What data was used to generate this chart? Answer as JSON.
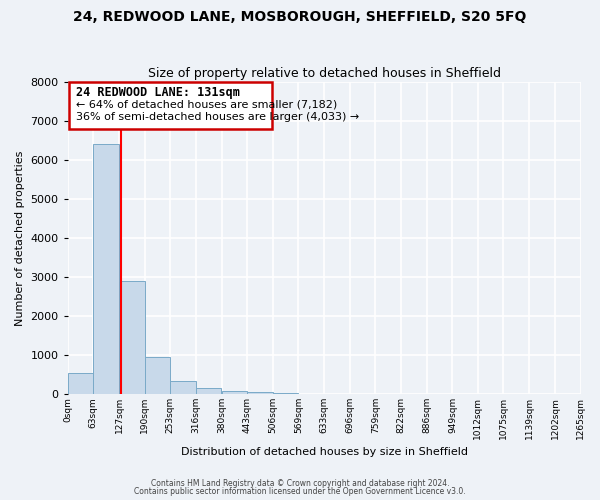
{
  "title1": "24, REDWOOD LANE, MOSBOROUGH, SHEFFIELD, S20 5FQ",
  "title2": "Size of property relative to detached houses in Sheffield",
  "xlabel": "Distribution of detached houses by size in Sheffield",
  "ylabel": "Number of detached properties",
  "bin_edges": [
    0,
    63,
    127,
    190,
    253,
    316,
    380,
    443,
    506,
    569,
    633,
    696,
    759,
    822,
    886,
    949,
    1012,
    1075,
    1139,
    1202,
    1265
  ],
  "bin_labels": [
    "0sqm",
    "63sqm",
    "127sqm",
    "190sqm",
    "253sqm",
    "316sqm",
    "380sqm",
    "443sqm",
    "506sqm",
    "569sqm",
    "633sqm",
    "696sqm",
    "759sqm",
    "822sqm",
    "886sqm",
    "949sqm",
    "1012sqm",
    "1075sqm",
    "1139sqm",
    "1202sqm",
    "1265sqm"
  ],
  "bar_heights": [
    550,
    6400,
    2900,
    950,
    350,
    150,
    75,
    50,
    30,
    10,
    5,
    3,
    2,
    1,
    1,
    0,
    0,
    0,
    0,
    0
  ],
  "bar_color": "#c8d9ea",
  "bar_edge_color": "#7aaac8",
  "red_line_x": 131,
  "ylim": [
    0,
    8000
  ],
  "yticks": [
    0,
    1000,
    2000,
    3000,
    4000,
    5000,
    6000,
    7000,
    8000
  ],
  "annotation_title": "24 REDWOOD LANE: 131sqm",
  "annotation_line1": "← 64% of detached houses are smaller (7,182)",
  "annotation_line2": "36% of semi-detached houses are larger (4,033) →",
  "footer1": "Contains HM Land Registry data © Crown copyright and database right 2024.",
  "footer2": "Contains public sector information licensed under the Open Government Licence v3.0.",
  "bg_color": "#eef2f7",
  "plot_bg_color": "#eef2f7",
  "grid_color": "#ffffff",
  "annotation_box_color": "#ffffff",
  "annotation_box_edge": "#cc0000",
  "title1_fontsize": 10,
  "title2_fontsize": 9,
  "ylabel_fontsize": 8,
  "xlabel_fontsize": 8,
  "ytick_fontsize": 8,
  "xtick_fontsize": 6.5
}
